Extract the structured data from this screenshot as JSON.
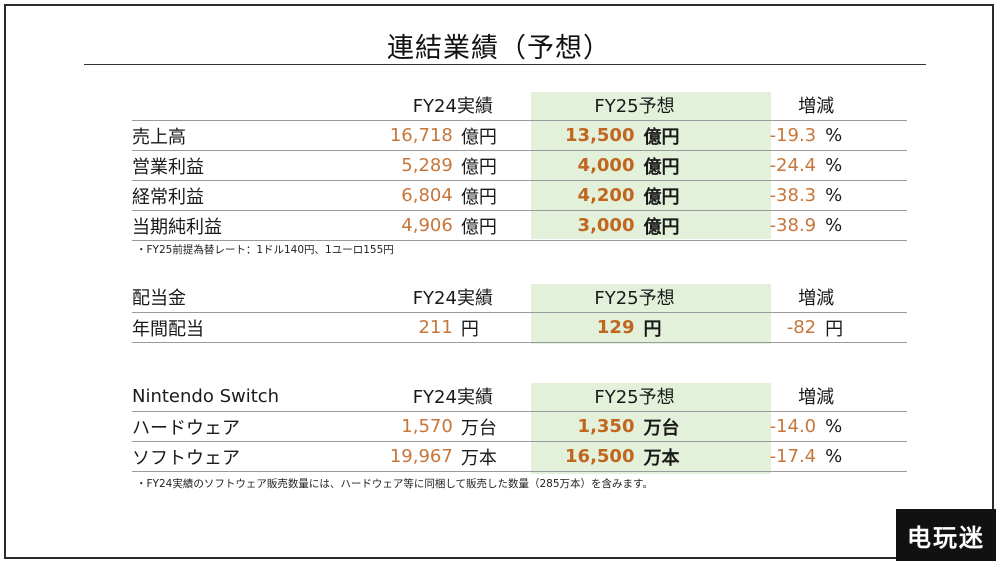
{
  "title": "連結業績（予想）",
  "header": {
    "prev": "FY24実績",
    "forecast": "FY25予想",
    "change": "増減"
  },
  "results": [
    {
      "label": "売上高",
      "prev": "16,718",
      "prev_unit": "億円",
      "forecast": "13,500",
      "forecast_unit": "億円",
      "change": "-19.3",
      "change_unit": "%"
    },
    {
      "label": "営業利益",
      "prev": "5,289",
      "prev_unit": "億円",
      "forecast": "4,000",
      "forecast_unit": "億円",
      "change": "-24.4",
      "change_unit": "%"
    },
    {
      "label": "経常利益",
      "prev": "6,804",
      "prev_unit": "億円",
      "forecast": "4,200",
      "forecast_unit": "億円",
      "change": "-38.3",
      "change_unit": "%"
    },
    {
      "label": "当期純利益",
      "prev": "4,906",
      "prev_unit": "億円",
      "forecast": "3,000",
      "forecast_unit": "億円",
      "change": "-38.9",
      "change_unit": "%"
    }
  ],
  "results_note": "・FY25前提為替レート：1ドル140円、1ユーロ155円",
  "dividend": {
    "section_label": "配当金",
    "rows": [
      {
        "label": "年間配当",
        "prev": "211",
        "prev_unit": "円",
        "forecast": "129",
        "forecast_unit": "円",
        "change": "-82",
        "change_unit": "円"
      }
    ]
  },
  "switch": {
    "section_label": "Nintendo Switch",
    "rows": [
      {
        "label": "ハードウェア",
        "prev": "1,570",
        "prev_unit": "万台",
        "forecast": "1,350",
        "forecast_unit": "万台",
        "change": "-14.0",
        "change_unit": "%"
      },
      {
        "label": "ソフトウェア",
        "prev": "19,967",
        "prev_unit": "万本",
        "forecast": "16,500",
        "forecast_unit": "万本",
        "change": "-17.4",
        "change_unit": "%"
      }
    ],
    "note": "・FY24実績のソフトウェア販売数量には、ハードウェア等に同梱して販売した数量（285万本）を含みます。"
  },
  "watermark": "电玩迷"
}
